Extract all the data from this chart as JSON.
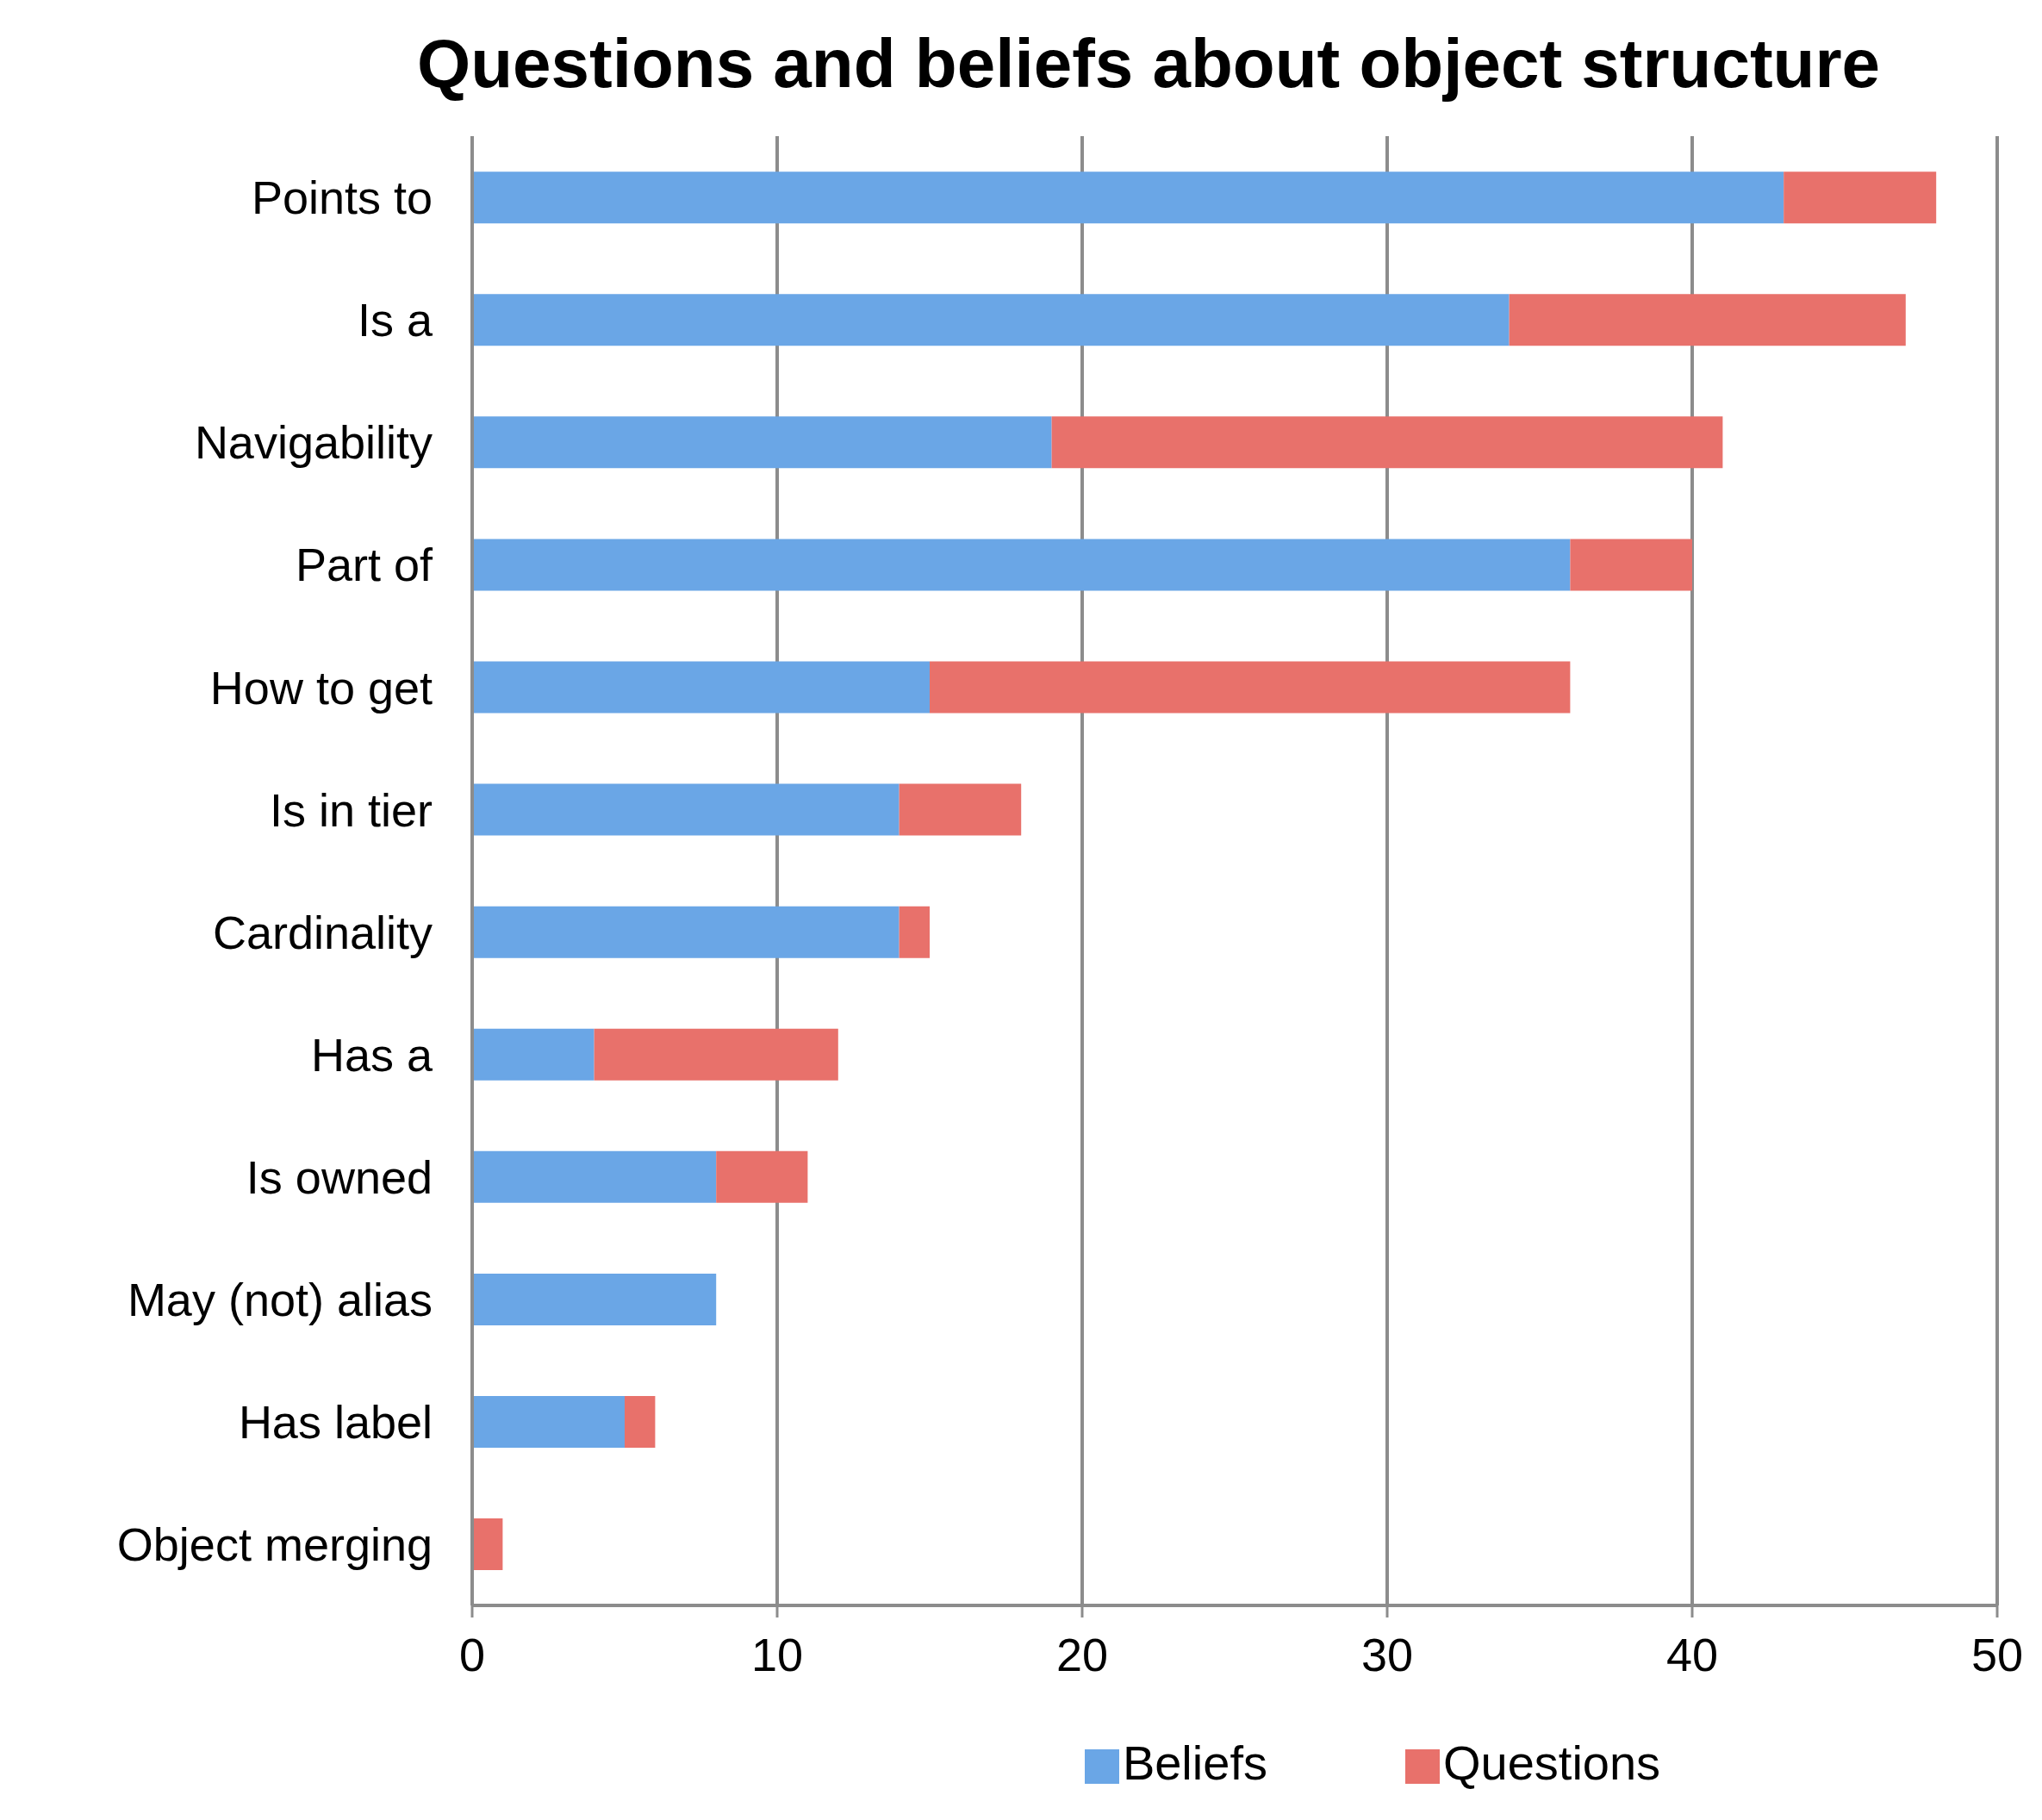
{
  "chart_data": {
    "type": "bar",
    "orientation": "horizontal",
    "stacked": true,
    "title": "Questions and beliefs about object structure",
    "categories": [
      "Points to",
      "Is a",
      "Navigability",
      "Part of",
      "How to get",
      "Is in tier",
      "Cardinality",
      "Has a",
      "Is owned",
      "May (not) alias",
      "Has label",
      "Object merging"
    ],
    "series": [
      {
        "name": "Beliefs",
        "color": "#6aa6e6",
        "values": [
          43,
          34,
          19,
          36,
          15,
          14,
          14,
          4,
          8,
          8,
          5,
          0
        ]
      },
      {
        "name": "Questions",
        "color": "#e8716b",
        "values": [
          5,
          13,
          22,
          4,
          21,
          4,
          1,
          8,
          3,
          0,
          1,
          1
        ]
      }
    ],
    "xlim": [
      0,
      50
    ],
    "xticks": [
      0,
      10,
      20,
      30,
      40,
      50
    ],
    "grid": "x",
    "legend": "bottom"
  }
}
